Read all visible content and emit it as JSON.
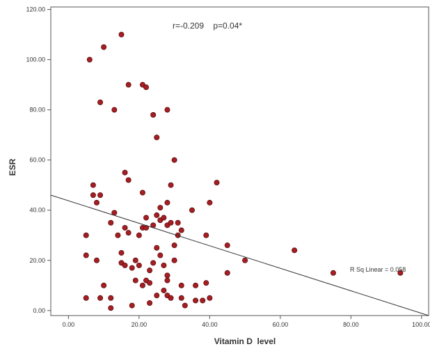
{
  "chart_data": {
    "type": "scatter",
    "xlabel": "Vitamin D  level",
    "ylabel": "ESR",
    "xlim": [
      -5,
      102
    ],
    "ylim": [
      -2,
      121
    ],
    "x_ticks": [
      0,
      20,
      40,
      60,
      80,
      100
    ],
    "y_ticks": [
      0,
      20,
      40,
      60,
      80,
      100,
      120
    ],
    "x_tick_labels": [
      "0.00",
      "20.00",
      "40.00",
      "60.00",
      "80.00",
      "100.00"
    ],
    "y_tick_labels": [
      "0.00",
      "20.00",
      "40.00",
      "60.00",
      "80.00",
      "100.00",
      "120.00"
    ],
    "grid": false,
    "annotation": "r=-0.209    p=0.04*",
    "fit_line": {
      "label": "R Sq Linear = 0.058",
      "start": [
        -5,
        46
      ],
      "end": [
        102,
        -2
      ]
    },
    "point_color": "#a61e22",
    "points": [
      [
        6,
        100
      ],
      [
        10,
        105
      ],
      [
        15,
        110
      ],
      [
        9,
        83
      ],
      [
        13,
        80
      ],
      [
        17,
        90
      ],
      [
        21,
        90
      ],
      [
        22,
        89
      ],
      [
        24,
        78
      ],
      [
        28,
        80
      ],
      [
        25,
        69
      ],
      [
        30,
        60
      ],
      [
        16,
        55
      ],
      [
        17,
        52
      ],
      [
        21,
        47
      ],
      [
        29,
        50
      ],
      [
        7,
        50
      ],
      [
        7,
        46
      ],
      [
        9,
        46
      ],
      [
        8,
        43
      ],
      [
        13,
        39
      ],
      [
        12,
        35
      ],
      [
        16,
        33
      ],
      [
        20,
        30
      ],
      [
        21,
        33
      ],
      [
        22,
        37
      ],
      [
        22,
        33
      ],
      [
        25,
        38
      ],
      [
        26,
        36
      ],
      [
        28,
        34
      ],
      [
        31,
        35
      ],
      [
        32,
        32
      ],
      [
        35,
        40
      ],
      [
        40,
        43
      ],
      [
        42,
        51
      ],
      [
        39,
        30
      ],
      [
        45,
        26
      ],
      [
        24,
        34
      ],
      [
        27,
        37
      ],
      [
        29,
        35
      ],
      [
        5,
        30
      ],
      [
        5,
        22
      ],
      [
        8,
        20
      ],
      [
        10,
        10
      ],
      [
        9,
        5
      ],
      [
        5,
        5
      ],
      [
        12,
        5
      ],
      [
        12,
        1
      ],
      [
        15,
        19
      ],
      [
        15,
        23
      ],
      [
        17,
        31
      ],
      [
        18,
        17
      ],
      [
        19,
        20
      ],
      [
        20,
        18
      ],
      [
        19,
        12
      ],
      [
        21,
        10
      ],
      [
        22,
        12
      ],
      [
        23,
        11
      ],
      [
        23,
        16
      ],
      [
        24,
        19
      ],
      [
        25,
        25
      ],
      [
        26,
        22
      ],
      [
        27,
        18
      ],
      [
        28,
        14
      ],
      [
        28,
        12
      ],
      [
        27,
        8
      ],
      [
        28,
        6
      ],
      [
        29,
        5
      ],
      [
        30,
        26
      ],
      [
        30,
        20
      ],
      [
        25,
        6
      ],
      [
        23,
        3
      ],
      [
        33,
        2
      ],
      [
        32,
        5
      ],
      [
        32,
        10
      ],
      [
        36,
        4
      ],
      [
        36,
        10
      ],
      [
        38,
        4
      ],
      [
        39,
        11
      ],
      [
        40,
        5
      ],
      [
        45,
        15
      ],
      [
        50,
        20
      ],
      [
        64,
        24
      ],
      [
        75,
        15
      ],
      [
        94,
        15
      ],
      [
        31,
        30
      ],
      [
        26,
        41
      ],
      [
        28,
        43
      ],
      [
        18,
        2
      ],
      [
        14,
        30
      ],
      [
        16,
        18
      ]
    ]
  }
}
